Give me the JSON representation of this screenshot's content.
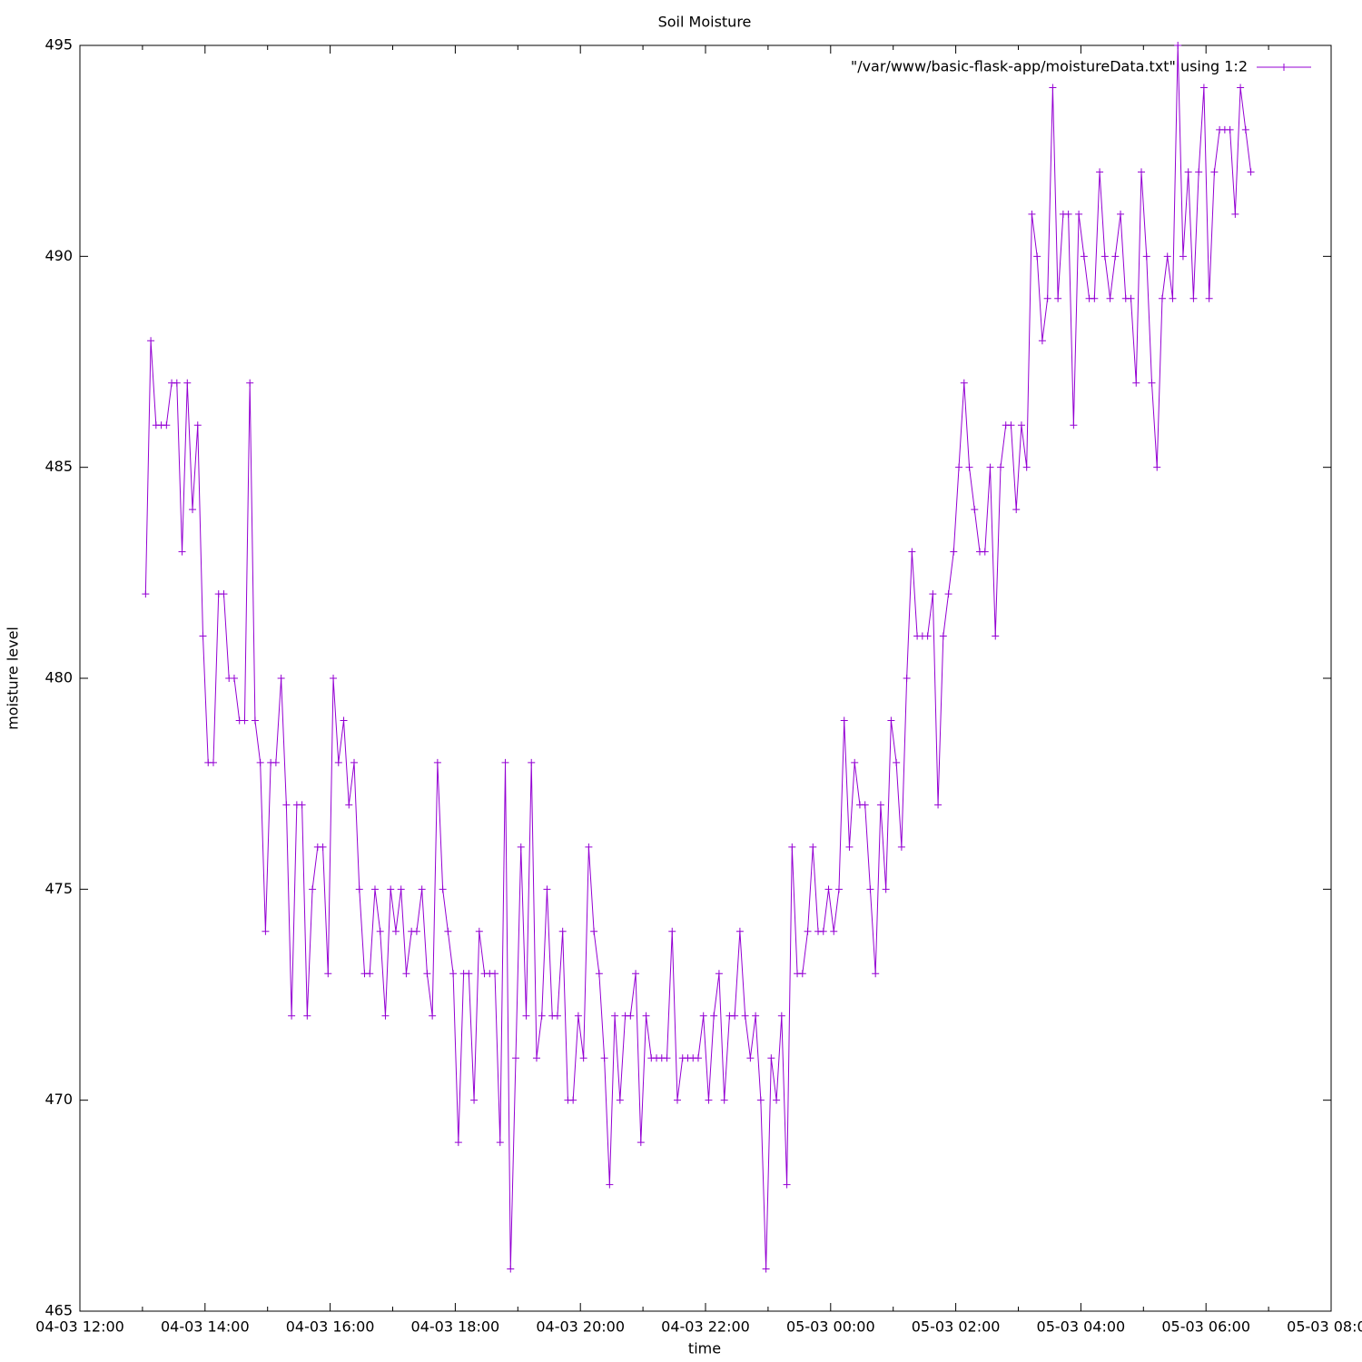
{
  "chart_data": {
    "type": "line",
    "title": "Soil Moisture",
    "xlabel": "time",
    "ylabel": "moisture level",
    "x": [
      "04-03 13:03",
      "04-03 13:08",
      "04-03 13:13",
      "04-03 13:18",
      "04-03 13:23",
      "04-03 13:28",
      "04-03 13:33",
      "04-03 13:38",
      "04-03 13:43",
      "04-03 13:48",
      "04-03 13:53",
      "04-03 13:58",
      "04-03 14:03",
      "04-03 14:08",
      "04-03 14:13",
      "04-03 14:18",
      "04-03 14:23",
      "04-03 14:28",
      "04-03 14:33",
      "04-03 14:38",
      "04-03 14:43",
      "04-03 14:48",
      "04-03 14:53",
      "04-03 14:58",
      "04-03 15:03",
      "04-03 15:08",
      "04-03 15:13",
      "04-03 15:18",
      "04-03 15:23",
      "04-03 15:28",
      "04-03 15:33",
      "04-03 15:38",
      "04-03 15:43",
      "04-03 15:48",
      "04-03 15:53",
      "04-03 15:58",
      "04-03 16:03",
      "04-03 16:08",
      "04-03 16:13",
      "04-03 16:18",
      "04-03 16:23",
      "04-03 16:28",
      "04-03 16:33",
      "04-03 16:38",
      "04-03 16:43",
      "04-03 16:48",
      "04-03 16:53",
      "04-03 16:58",
      "04-03 17:03",
      "04-03 17:08",
      "04-03 17:13",
      "04-03 17:18",
      "04-03 17:23",
      "04-03 17:28",
      "04-03 17:33",
      "04-03 17:38",
      "04-03 17:43",
      "04-03 17:48",
      "04-03 17:53",
      "04-03 17:58",
      "04-03 18:03",
      "04-03 18:08",
      "04-03 18:13",
      "04-03 18:18",
      "04-03 18:23",
      "04-03 18:28",
      "04-03 18:33",
      "04-03 18:38",
      "04-03 18:43",
      "04-03 18:48",
      "04-03 18:53",
      "04-03 18:58",
      "04-03 19:03",
      "04-03 19:08",
      "04-03 19:13",
      "04-03 19:18",
      "04-03 19:23",
      "04-03 19:28",
      "04-03 19:33",
      "04-03 19:38",
      "04-03 19:43",
      "04-03 19:48",
      "04-03 19:53",
      "04-03 19:58",
      "04-03 20:03",
      "04-03 20:08",
      "04-03 20:13",
      "04-03 20:18",
      "04-03 20:23",
      "04-03 20:28",
      "04-03 20:33",
      "04-03 20:38",
      "04-03 20:43",
      "04-03 20:48",
      "04-03 20:53",
      "04-03 20:58",
      "04-03 21:03",
      "04-03 21:08",
      "04-03 21:13",
      "04-03 21:18",
      "04-03 21:23",
      "04-03 21:28",
      "04-03 21:33",
      "04-03 21:38",
      "04-03 21:43",
      "04-03 21:48",
      "04-03 21:53",
      "04-03 21:58",
      "04-03 22:03",
      "04-03 22:08",
      "04-03 22:13",
      "04-03 22:18",
      "04-03 22:23",
      "04-03 22:28",
      "04-03 22:33",
      "04-03 22:38",
      "04-03 22:43",
      "04-03 22:48",
      "04-03 22:53",
      "04-03 22:58",
      "04-03 23:03",
      "04-03 23:08",
      "04-03 23:13",
      "04-03 23:18",
      "04-03 23:23",
      "04-03 23:28",
      "04-03 23:33",
      "04-03 23:38",
      "04-03 23:43",
      "04-03 23:48",
      "04-03 23:53",
      "04-03 23:58",
      "05-03 00:03",
      "05-03 00:08",
      "05-03 00:13",
      "05-03 00:18",
      "05-03 00:23",
      "05-03 00:28",
      "05-03 00:33",
      "05-03 00:38",
      "05-03 00:43",
      "05-03 00:48",
      "05-03 00:53",
      "05-03 00:58",
      "05-03 01:03",
      "05-03 01:08",
      "05-03 01:13",
      "05-03 01:18",
      "05-03 01:23",
      "05-03 01:28",
      "05-03 01:33",
      "05-03 01:38",
      "05-03 01:43",
      "05-03 01:48",
      "05-03 01:53",
      "05-03 01:58",
      "05-03 02:03",
      "05-03 02:08",
      "05-03 02:13",
      "05-03 02:18",
      "05-03 02:23",
      "05-03 02:28",
      "05-03 02:33",
      "05-03 02:38",
      "05-03 02:43",
      "05-03 02:48",
      "05-03 02:53",
      "05-03 02:58",
      "05-03 03:03",
      "05-03 03:08",
      "05-03 03:13",
      "05-03 03:18",
      "05-03 03:23",
      "05-03 03:28",
      "05-03 03:33",
      "05-03 03:38",
      "05-03 03:43",
      "05-03 03:48",
      "05-03 03:53",
      "05-03 03:58",
      "05-03 04:03",
      "05-03 04:08",
      "05-03 04:13",
      "05-03 04:18",
      "05-03 04:23",
      "05-03 04:28",
      "05-03 04:33",
      "05-03 04:38",
      "05-03 04:43",
      "05-03 04:48",
      "05-03 04:53",
      "05-03 04:58",
      "05-03 05:03",
      "05-03 05:08",
      "05-03 05:13",
      "05-03 05:18",
      "05-03 05:23",
      "05-03 05:28",
      "05-03 05:33",
      "05-03 05:38",
      "05-03 05:43",
      "05-03 05:48",
      "05-03 05:53",
      "05-03 05:58",
      "05-03 06:03",
      "05-03 06:08",
      "05-03 06:13",
      "05-03 06:18",
      "05-03 06:23",
      "05-03 06:28",
      "05-03 06:33",
      "05-03 06:38",
      "05-03 06:43"
    ],
    "series": [
      {
        "name": "\"/var/www/basic-flask-app/moistureData.txt\" using 1:2",
        "color": "#9400d3",
        "values": [
          482,
          488,
          486,
          486,
          486,
          487,
          487,
          483,
          487,
          484,
          486,
          481,
          478,
          478,
          482,
          482,
          480,
          480,
          479,
          479,
          487,
          479,
          478,
          474,
          478,
          478,
          480,
          477,
          472,
          477,
          477,
          472,
          475,
          476,
          476,
          473,
          480,
          478,
          479,
          477,
          478,
          475,
          473,
          473,
          475,
          474,
          472,
          475,
          474,
          475,
          473,
          474,
          474,
          475,
          473,
          472,
          478,
          475,
          474,
          473,
          469,
          473,
          473,
          470,
          474,
          473,
          473,
          473,
          469,
          478,
          466,
          471,
          476,
          472,
          478,
          471,
          472,
          475,
          472,
          472,
          474,
          470,
          470,
          472,
          471,
          476,
          474,
          473,
          471,
          468,
          472,
          470,
          472,
          472,
          473,
          469,
          472,
          471,
          471,
          471,
          471,
          474,
          470,
          471,
          471,
          471,
          471,
          472,
          470,
          472,
          473,
          470,
          472,
          472,
          474,
          472,
          471,
          472,
          470,
          466,
          471,
          470,
          472,
          468,
          476,
          473,
          473,
          474,
          476,
          474,
          474,
          475,
          474,
          475,
          479,
          476,
          478,
          477,
          477,
          475,
          473,
          477,
          475,
          479,
          478,
          476,
          480,
          483,
          481,
          481,
          481,
          482,
          477,
          481,
          482,
          483,
          485,
          487,
          485,
          484,
          483,
          483,
          485,
          481,
          485,
          486,
          486,
          484,
          486,
          485,
          491,
          490,
          488,
          489,
          494,
          489,
          491,
          491,
          486,
          491,
          490,
          489,
          489,
          492,
          490,
          489,
          490,
          491,
          489,
          489,
          487,
          492,
          490,
          487,
          485,
          489,
          490,
          489,
          495,
          490,
          492,
          489,
          492,
          494,
          489,
          492,
          493,
          493,
          493,
          491,
          494,
          493,
          492
        ]
      }
    ],
    "xlim": [
      "04-03 12:00",
      "05-03 08:00"
    ],
    "xticks": [
      "04-03 12:00",
      "04-03 14:00",
      "04-03 16:00",
      "04-03 18:00",
      "04-03 20:00",
      "04-03 22:00",
      "05-03 00:00",
      "05-03 02:00",
      "05-03 04:00",
      "05-03 06:00",
      "05-03 08:00"
    ],
    "ylim": [
      465,
      495
    ],
    "yticks": [
      465,
      470,
      475,
      480,
      485,
      490,
      495
    ],
    "legend": "upper right"
  }
}
